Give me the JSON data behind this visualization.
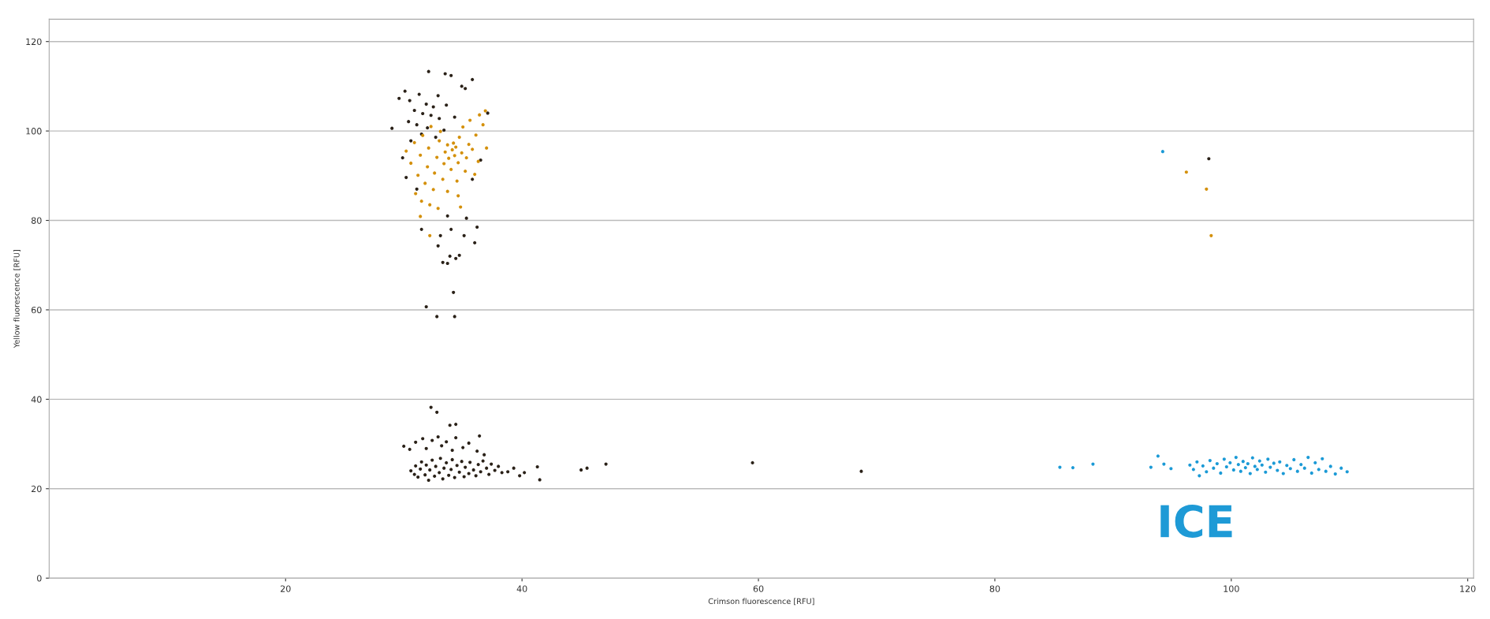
{
  "chart_data": {
    "type": "scatter",
    "xlabel": "Crimson fluorescence [RFU]",
    "ylabel": "Yellow fluorescence [RFU]",
    "xlim": [
      0,
      120.5
    ],
    "ylim": [
      0,
      125
    ],
    "xticks": [
      20,
      40,
      60,
      80,
      100,
      120
    ],
    "yticks": [
      0,
      20,
      40,
      60,
      80,
      100,
      120
    ],
    "grid": "y",
    "marker": "circle",
    "legend": false,
    "annotations": [
      "ICE"
    ],
    "series": [
      {
        "color": "#2a2118",
        "x": [
          30.6,
          30.9,
          31.0,
          31.2,
          31.4,
          31.5,
          31.8,
          31.9,
          32.1,
          32.2,
          32.4,
          32.6,
          32.7,
          33.0,
          33.1,
          33.3,
          33.4,
          33.6,
          33.8,
          34.0,
          34.1,
          34.3,
          34.5,
          34.7,
          34.9,
          35.1,
          35.2,
          35.5,
          35.6,
          35.9,
          36.1,
          36.3,
          36.5,
          36.7,
          37.0,
          37.2,
          37.4,
          37.7,
          38.0,
          38.3,
          30.0,
          30.5,
          31.0,
          31.6,
          31.9,
          32.4,
          32.9,
          33.2,
          33.6,
          34.1,
          34.4,
          35.0,
          35.5,
          36.2,
          36.8,
          32.3,
          32.8,
          33.9,
          34.4,
          36.4,
          38.8,
          39.3,
          39.8,
          40.2,
          41.3,
          41.5,
          45.0,
          45.5,
          47.1,
          59.5,
          68.7,
          32.1,
          33.5,
          34.0,
          35.8,
          34.9,
          35.2,
          30.1,
          31.3,
          32.9,
          29.6,
          30.5,
          31.9,
          32.5,
          33.6,
          30.9,
          31.6,
          32.3,
          33.0,
          34.3,
          30.4,
          31.1,
          32.0,
          29.0,
          33.4,
          31.5,
          32.7,
          30.6,
          29.9,
          30.2,
          31.1,
          35.8,
          37.1,
          36.5,
          33.7,
          35.3,
          31.9,
          32.8,
          34.3,
          34.2,
          33.3,
          33.7,
          33.9,
          34.4,
          34.7,
          32.9,
          31.5,
          33.1,
          34.0,
          35.1,
          36.0,
          36.2,
          98.1
        ],
        "values": [
          24.0,
          23.2,
          25.1,
          22.6,
          24.4,
          26.0,
          23.1,
          25.3,
          21.9,
          24.2,
          26.4,
          22.8,
          25.0,
          23.6,
          26.8,
          22.2,
          24.6,
          25.8,
          23.0,
          24.3,
          26.5,
          22.5,
          25.2,
          23.7,
          26.1,
          22.7,
          24.8,
          23.4,
          25.9,
          24.2,
          22.9,
          25.4,
          23.8,
          26.2,
          24.6,
          23.2,
          25.5,
          24.1,
          25.0,
          23.6,
          29.5,
          28.8,
          30.4,
          31.2,
          29.0,
          30.8,
          31.6,
          29.6,
          30.5,
          28.6,
          31.4,
          29.2,
          30.2,
          28.4,
          27.6,
          38.2,
          37.1,
          34.2,
          34.4,
          31.8,
          23.8,
          24.6,
          22.9,
          23.6,
          24.9,
          22.0,
          24.2,
          24.6,
          25.5,
          25.8,
          23.9,
          113.3,
          112.8,
          112.4,
          111.5,
          110.0,
          109.5,
          108.9,
          108.2,
          107.9,
          107.3,
          106.8,
          106.0,
          105.4,
          105.8,
          104.6,
          103.9,
          103.5,
          102.8,
          103.1,
          102.1,
          101.4,
          100.7,
          100.6,
          100.2,
          99.3,
          98.6,
          97.8,
          94.0,
          89.6,
          87.0,
          89.2,
          104.0,
          93.5,
          81.0,
          80.5,
          60.7,
          58.5,
          58.5,
          63.9,
          70.6,
          70.4,
          72.0,
          71.5,
          72.2,
          74.3,
          78.0,
          76.6,
          78.0,
          76.6,
          75.0,
          78.5,
          93.8
        ]
      },
      {
        "color": "#d4900a",
        "x": [
          30.2,
          30.6,
          30.9,
          31.2,
          31.4,
          31.6,
          31.8,
          32.0,
          32.1,
          32.3,
          32.5,
          32.6,
          32.8,
          33.0,
          33.1,
          33.3,
          33.4,
          33.5,
          33.7,
          33.8,
          34.0,
          34.1,
          34.2,
          34.3,
          34.4,
          34.5,
          34.6,
          34.7,
          34.9,
          35.0,
          35.2,
          35.3,
          35.5,
          35.6,
          35.8,
          36.0,
          36.1,
          36.3,
          36.4,
          36.7,
          36.9,
          37.0,
          31.0,
          31.5,
          32.2,
          32.9,
          33.7,
          34.8,
          34.6,
          31.4,
          32.2,
          96.2,
          97.9,
          98.3
        ],
        "values": [
          95.5,
          92.8,
          97.4,
          90.1,
          94.6,
          99.0,
          88.3,
          92.0,
          96.2,
          101.0,
          86.9,
          90.6,
          94.1,
          97.8,
          99.9,
          89.2,
          92.7,
          95.3,
          96.9,
          93.9,
          91.4,
          95.8,
          97.3,
          94.5,
          96.4,
          88.8,
          92.9,
          98.6,
          95.1,
          100.9,
          91.0,
          94.0,
          97.0,
          102.4,
          95.9,
          90.3,
          99.1,
          93.2,
          103.6,
          101.4,
          104.5,
          96.2,
          86.0,
          84.3,
          83.5,
          82.7,
          86.5,
          83.0,
          85.5,
          80.9,
          76.6,
          90.8,
          87.0,
          76.6
        ]
      },
      {
        "color": "#1b9ad6",
        "x": [
          85.5,
          86.6,
          88.3,
          93.2,
          93.8,
          94.3,
          94.9,
          94.2,
          96.5,
          96.8,
          97.1,
          97.3,
          97.6,
          97.9,
          98.2,
          98.5,
          98.8,
          99.1,
          99.4,
          99.6,
          99.9,
          100.2,
          100.4,
          100.6,
          100.8,
          101.0,
          101.2,
          101.4,
          101.6,
          101.8,
          102.0,
          102.2,
          102.4,
          102.6,
          102.9,
          103.1,
          103.3,
          103.6,
          103.9,
          104.1,
          104.4,
          104.7,
          105.0,
          105.3,
          105.6,
          105.9,
          106.2,
          106.5,
          106.8,
          107.1,
          107.4,
          107.7,
          108.0,
          108.4,
          108.8,
          109.3,
          109.8
        ],
        "values": [
          24.8,
          24.7,
          25.5,
          24.8,
          27.3,
          25.5,
          24.5,
          95.4,
          25.3,
          24.3,
          26.0,
          22.9,
          25.1,
          23.8,
          26.3,
          24.6,
          25.6,
          23.5,
          26.6,
          24.9,
          25.8,
          24.2,
          27.0,
          25.4,
          23.9,
          26.1,
          24.7,
          25.6,
          23.4,
          26.9,
          25.0,
          24.3,
          26.2,
          25.3,
          23.7,
          26.6,
          24.8,
          25.7,
          24.1,
          26.0,
          23.4,
          25.2,
          24.5,
          26.5,
          23.9,
          25.4,
          24.6,
          27.0,
          23.5,
          25.8,
          24.3,
          26.7,
          23.9,
          25.0,
          23.3,
          24.6,
          23.8
        ]
      }
    ]
  }
}
